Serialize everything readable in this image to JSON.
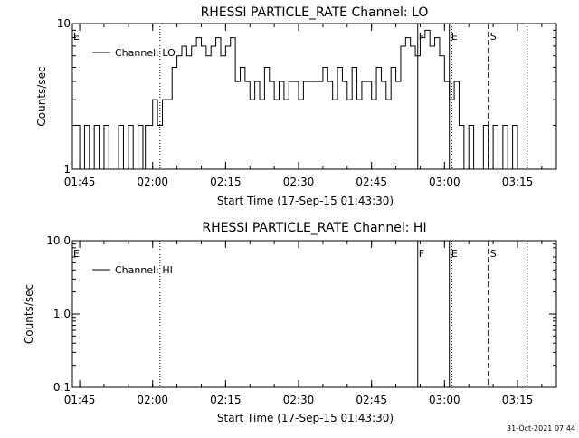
{
  "footer": {
    "timestamp": "31-Oct-2021 07:44"
  },
  "chart_data": [
    {
      "type": "line",
      "title": "RHESSI PARTICLE_RATE Channel: LO",
      "xlabel": "Start Time (17-Sep-15 01:43:30)",
      "ylabel": "Counts/sec",
      "yscale": "log",
      "ylim": [
        1,
        10
      ],
      "xlim": [
        "01:43:30",
        "03:23:00"
      ],
      "y_ticks": [
        {
          "value": 1,
          "label": "1"
        },
        {
          "value": 10,
          "label": "10"
        }
      ],
      "x_ticks": [
        {
          "value": "01:45",
          "label": "01:45"
        },
        {
          "value": "02:00",
          "label": "02:00"
        },
        {
          "value": "02:15",
          "label": "02:15"
        },
        {
          "value": "02:30",
          "label": "02:30"
        },
        {
          "value": "02:45",
          "label": "02:45"
        },
        {
          "value": "03:00",
          "label": "03:00"
        },
        {
          "value": "03:15",
          "label": "03:15"
        }
      ],
      "legend": {
        "label": "Channel: LO",
        "position": "top-left"
      },
      "series": [
        {
          "name": "Channel: LO",
          "x": [
            "01:43:30",
            "01:45:00",
            "01:46:00",
            "01:47:00",
            "01:48:00",
            "01:49:00",
            "01:50:00",
            "01:51:00",
            "01:52:00",
            "01:53:00",
            "01:54:00",
            "01:55:00",
            "01:56:00",
            "01:57:00",
            "01:58:00",
            "01:58:30",
            "01:59:00",
            "02:00:00",
            "02:01:00",
            "02:02:00",
            "02:03:00",
            "02:04:00",
            "02:05:00",
            "02:06:00",
            "02:07:00",
            "02:08:00",
            "02:09:00",
            "02:10:00",
            "02:11:00",
            "02:12:00",
            "02:13:00",
            "02:14:00",
            "02:15:00",
            "02:16:00",
            "02:17:00",
            "02:18:00",
            "02:19:00",
            "02:20:00",
            "02:21:00",
            "02:22:00",
            "02:23:00",
            "02:24:00",
            "02:25:00",
            "02:26:00",
            "02:27:00",
            "02:28:00",
            "02:29:00",
            "02:30:00",
            "02:31:00",
            "02:32:00",
            "02:33:00",
            "02:34:00",
            "02:35:00",
            "02:36:00",
            "02:37:00",
            "02:38:00",
            "02:39:00",
            "02:40:00",
            "02:41:00",
            "02:42:00",
            "02:43:00",
            "02:44:00",
            "02:45:00",
            "02:46:00",
            "02:47:00",
            "02:48:00",
            "02:49:00",
            "02:50:00",
            "02:51:00",
            "02:52:00",
            "02:53:00",
            "02:54:00",
            "02:55:00",
            "02:56:00",
            "02:57:00",
            "02:58:00",
            "02:59:00",
            "03:00:00",
            "03:01:00",
            "03:02:00",
            "03:03:00",
            "03:04:00",
            "03:05:00",
            "03:06:00",
            "03:07:00",
            "03:08:00",
            "03:09:00",
            "03:10:00",
            "03:11:00",
            "03:12:00",
            "03:13:00",
            "03:14:00",
            "03:15:00"
          ],
          "y": [
            2,
            1,
            2,
            1,
            2,
            1,
            2,
            1,
            1,
            2,
            1,
            2,
            1,
            2,
            1,
            2,
            2,
            3,
            2,
            3,
            3,
            5,
            6,
            7,
            6,
            7,
            8,
            7,
            6,
            7,
            8,
            6,
            7,
            8,
            4,
            5,
            4,
            3,
            4,
            3,
            5,
            4,
            3,
            4,
            3,
            4,
            4,
            3,
            4,
            4,
            4,
            4,
            5,
            4,
            3,
            5,
            4,
            3,
            5,
            3,
            4,
            4,
            3,
            5,
            4,
            3,
            5,
            4,
            7,
            8,
            7,
            6,
            8,
            9,
            7,
            8,
            6,
            4,
            3,
            4,
            2,
            1,
            2,
            1,
            1,
            2,
            1,
            2,
            1,
            2,
            1,
            2,
            1
          ]
        }
      ],
      "markers": [
        {
          "label": "E",
          "time": "01:43:30",
          "style": "text"
        },
        {
          "time": "02:01:30",
          "style": "dotted"
        },
        {
          "label": "F",
          "time": "02:54:30",
          "style": "solid"
        },
        {
          "label": "E",
          "time": "03:01:00",
          "style": "solid"
        },
        {
          "time": "03:01:30",
          "style": "dotted"
        },
        {
          "label": "S",
          "time": "03:09:00",
          "style": "dashed"
        },
        {
          "time": "03:17:00",
          "style": "dotted"
        }
      ]
    },
    {
      "type": "line",
      "title": "RHESSI PARTICLE_RATE Channel: HI",
      "xlabel": "Start Time (17-Sep-15 01:43:30)",
      "ylabel": "Counts/sec",
      "yscale": "log",
      "ylim": [
        0.1,
        10
      ],
      "xlim": [
        "01:43:30",
        "03:23:00"
      ],
      "y_ticks": [
        {
          "value": 0.1,
          "label": "0.1"
        },
        {
          "value": 1,
          "label": "1.0"
        },
        {
          "value": 10,
          "label": "10.0"
        }
      ],
      "x_ticks": [
        {
          "value": "01:45",
          "label": "01:45"
        },
        {
          "value": "02:00",
          "label": "02:00"
        },
        {
          "value": "02:15",
          "label": "02:15"
        },
        {
          "value": "02:30",
          "label": "02:30"
        },
        {
          "value": "02:45",
          "label": "02:45"
        },
        {
          "value": "03:00",
          "label": "03:00"
        },
        {
          "value": "03:15",
          "label": "03:15"
        }
      ],
      "legend": {
        "label": "Channel: HI",
        "position": "top-left"
      },
      "series": [
        {
          "name": "Channel: HI",
          "x": [],
          "y": []
        }
      ],
      "markers": [
        {
          "label": "E",
          "time": "01:43:30",
          "style": "text"
        },
        {
          "time": "02:01:30",
          "style": "dotted"
        },
        {
          "label": "F",
          "time": "02:54:30",
          "style": "solid"
        },
        {
          "label": "E",
          "time": "03:01:00",
          "style": "solid"
        },
        {
          "time": "03:01:30",
          "style": "dotted"
        },
        {
          "label": "S",
          "time": "03:09:00",
          "style": "dashed"
        },
        {
          "time": "03:17:00",
          "style": "dotted"
        }
      ]
    }
  ]
}
